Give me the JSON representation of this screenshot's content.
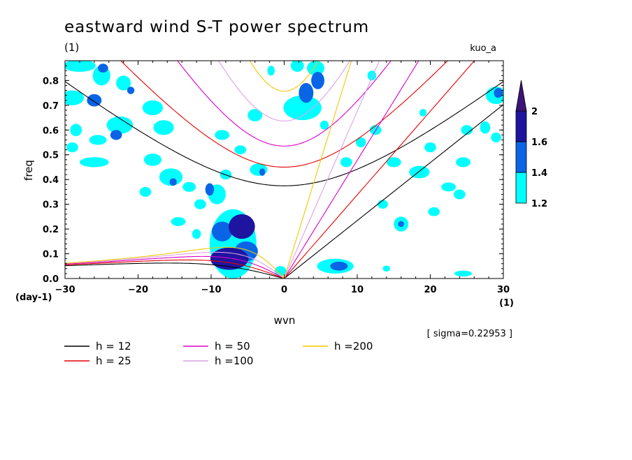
{
  "chart_data": {
    "type": "contour",
    "title": "eastward wind S-T power spectrum",
    "subtitle_left": "(1)",
    "subtitle_right": "kuo_a",
    "xlabel": "wvn",
    "ylabel": "freq",
    "x_unit_label": "(1)",
    "y_unit_label": "(day-1)",
    "xlim": [
      -30,
      30
    ],
    "ylim": [
      0,
      0.88
    ],
    "xticks": [
      -30,
      -20,
      -10,
      0,
      10,
      20,
      30
    ],
    "yticks": [
      0.0,
      0.1,
      0.2,
      0.3,
      0.4,
      0.5,
      0.6,
      0.7,
      0.8
    ],
    "ytick_labels": [
      "0.0",
      "0.1",
      "0.2",
      "0.3",
      "0.4",
      "0.5",
      "0.6",
      "0.7",
      "0.8"
    ],
    "sigma_note": "[ sigma=0.22953 ]",
    "colorbar": {
      "levels": [
        1.2,
        1.4,
        1.6,
        2
      ],
      "level_labels": [
        "1.2",
        "1.4",
        "1.6",
        "2"
      ],
      "colors": [
        "#00ffff",
        "#0a64e6",
        "#1e14a0",
        "#3c1478"
      ]
    },
    "dispersion_series": [
      {
        "name": "h = 12",
        "h": 12,
        "color": "#000000"
      },
      {
        "name": "h = 25",
        "h": 25,
        "color": "#e60000"
      },
      {
        "name": "h = 50",
        "h": 50,
        "color": "#dc00c8"
      },
      {
        "name": "h =100",
        "h": 100,
        "color": "#dca0e6"
      },
      {
        "name": "h =200",
        "h": 200,
        "color": "#f0c800"
      }
    ],
    "contour_patches": [
      {
        "x": -7.5,
        "y": 0.08,
        "rx": 2.6,
        "ry": 0.045,
        "level": 3
      },
      {
        "x": -5.2,
        "y": 0.11,
        "rx": 1.6,
        "ry": 0.04,
        "level": 2
      },
      {
        "x": -5.8,
        "y": 0.21,
        "rx": 1.8,
        "ry": 0.05,
        "level": 3
      },
      {
        "x": -8.5,
        "y": 0.19,
        "rx": 1.4,
        "ry": 0.04,
        "level": 2
      },
      {
        "x": -7.0,
        "y": 0.14,
        "rx": 3.2,
        "ry": 0.14,
        "level": 1
      },
      {
        "x": -9.2,
        "y": 0.34,
        "rx": 1.2,
        "ry": 0.04,
        "level": 1
      },
      {
        "x": -10.2,
        "y": 0.36,
        "rx": 0.6,
        "ry": 0.025,
        "level": 2
      },
      {
        "x": 7.0,
        "y": 0.05,
        "rx": 2.5,
        "ry": 0.03,
        "level": 1
      },
      {
        "x": 7.5,
        "y": 0.05,
        "rx": 1.2,
        "ry": 0.018,
        "level": 2
      },
      {
        "x": 2.5,
        "y": 0.69,
        "rx": 2.6,
        "ry": 0.05,
        "level": 1
      },
      {
        "x": 3.0,
        "y": 0.75,
        "rx": 1.0,
        "ry": 0.04,
        "level": 2
      },
      {
        "x": 4.6,
        "y": 0.8,
        "rx": 0.9,
        "ry": 0.035,
        "level": 2
      },
      {
        "x": 4.3,
        "y": 0.85,
        "rx": 1.2,
        "ry": 0.03,
        "level": 1
      },
      {
        "x": 1.8,
        "y": 0.86,
        "rx": 0.9,
        "ry": 0.025,
        "level": 1
      },
      {
        "x": -28.0,
        "y": 0.86,
        "rx": 2.2,
        "ry": 0.025,
        "level": 1
      },
      {
        "x": -25.0,
        "y": 0.82,
        "rx": 1.2,
        "ry": 0.04,
        "level": 1
      },
      {
        "x": -24.8,
        "y": 0.85,
        "rx": 0.7,
        "ry": 0.018,
        "level": 2
      },
      {
        "x": -29.0,
        "y": 0.73,
        "rx": 1.6,
        "ry": 0.03,
        "level": 1
      },
      {
        "x": -26.0,
        "y": 0.72,
        "rx": 1.0,
        "ry": 0.025,
        "level": 2
      },
      {
        "x": -22.0,
        "y": 0.79,
        "rx": 1.0,
        "ry": 0.03,
        "level": 1
      },
      {
        "x": -21.0,
        "y": 0.76,
        "rx": 0.5,
        "ry": 0.015,
        "level": 2
      },
      {
        "x": -18.0,
        "y": 0.69,
        "rx": 1.4,
        "ry": 0.03,
        "level": 1
      },
      {
        "x": -16.5,
        "y": 0.61,
        "rx": 1.4,
        "ry": 0.03,
        "level": 1
      },
      {
        "x": -22.5,
        "y": 0.62,
        "rx": 1.8,
        "ry": 0.035,
        "level": 1
      },
      {
        "x": -23.0,
        "y": 0.58,
        "rx": 0.8,
        "ry": 0.02,
        "level": 2
      },
      {
        "x": -28.5,
        "y": 0.6,
        "rx": 0.8,
        "ry": 0.025,
        "level": 1
      },
      {
        "x": -25.5,
        "y": 0.56,
        "rx": 1.2,
        "ry": 0.02,
        "level": 1
      },
      {
        "x": -29.0,
        "y": 0.53,
        "rx": 0.8,
        "ry": 0.02,
        "level": 1
      },
      {
        "x": -26.0,
        "y": 0.47,
        "rx": 2.0,
        "ry": 0.02,
        "level": 1
      },
      {
        "x": -18.0,
        "y": 0.48,
        "rx": 1.2,
        "ry": 0.025,
        "level": 1
      },
      {
        "x": -15.5,
        "y": 0.41,
        "rx": 1.6,
        "ry": 0.035,
        "level": 1
      },
      {
        "x": -15.2,
        "y": 0.39,
        "rx": 0.5,
        "ry": 0.015,
        "level": 2
      },
      {
        "x": -13.0,
        "y": 0.37,
        "rx": 0.9,
        "ry": 0.02,
        "level": 1
      },
      {
        "x": -11.5,
        "y": 0.3,
        "rx": 0.8,
        "ry": 0.02,
        "level": 1
      },
      {
        "x": -14.5,
        "y": 0.23,
        "rx": 1.0,
        "ry": 0.018,
        "level": 1
      },
      {
        "x": -3.5,
        "y": 0.44,
        "rx": 1.2,
        "ry": 0.025,
        "level": 1
      },
      {
        "x": -3.0,
        "y": 0.43,
        "rx": 0.4,
        "ry": 0.015,
        "level": 2
      },
      {
        "x": -4.0,
        "y": 0.66,
        "rx": 1.0,
        "ry": 0.025,
        "level": 1
      },
      {
        "x": -8.5,
        "y": 0.58,
        "rx": 1.0,
        "ry": 0.02,
        "level": 1
      },
      {
        "x": -6.0,
        "y": 0.52,
        "rx": 0.8,
        "ry": 0.018,
        "level": 1
      },
      {
        "x": 8.5,
        "y": 0.47,
        "rx": 0.8,
        "ry": 0.02,
        "level": 1
      },
      {
        "x": 10.5,
        "y": 0.55,
        "rx": 0.7,
        "ry": 0.02,
        "level": 1
      },
      {
        "x": 12.5,
        "y": 0.6,
        "rx": 0.8,
        "ry": 0.02,
        "level": 1
      },
      {
        "x": 15.0,
        "y": 0.47,
        "rx": 1.0,
        "ry": 0.02,
        "level": 1
      },
      {
        "x": 18.5,
        "y": 0.43,
        "rx": 1.4,
        "ry": 0.025,
        "level": 1
      },
      {
        "x": 20.0,
        "y": 0.53,
        "rx": 0.8,
        "ry": 0.02,
        "level": 1
      },
      {
        "x": 22.5,
        "y": 0.37,
        "rx": 1.0,
        "ry": 0.018,
        "level": 1
      },
      {
        "x": 24.5,
        "y": 0.47,
        "rx": 1.0,
        "ry": 0.02,
        "level": 1
      },
      {
        "x": 25.0,
        "y": 0.6,
        "rx": 0.8,
        "ry": 0.02,
        "level": 1
      },
      {
        "x": 27.5,
        "y": 0.61,
        "rx": 0.7,
        "ry": 0.025,
        "level": 1
      },
      {
        "x": 29.0,
        "y": 0.74,
        "rx": 1.4,
        "ry": 0.035,
        "level": 1
      },
      {
        "x": 29.3,
        "y": 0.75,
        "rx": 0.6,
        "ry": 0.02,
        "level": 2
      },
      {
        "x": 29.0,
        "y": 0.57,
        "rx": 0.7,
        "ry": 0.02,
        "level": 1
      },
      {
        "x": 16.0,
        "y": 0.22,
        "rx": 1.0,
        "ry": 0.03,
        "level": 1
      },
      {
        "x": 16.0,
        "y": 0.22,
        "rx": 0.4,
        "ry": 0.012,
        "level": 2
      },
      {
        "x": 20.5,
        "y": 0.27,
        "rx": 0.8,
        "ry": 0.018,
        "level": 1
      },
      {
        "x": 24.0,
        "y": 0.34,
        "rx": 0.8,
        "ry": 0.02,
        "level": 1
      },
      {
        "x": 13.5,
        "y": 0.3,
        "rx": 0.7,
        "ry": 0.018,
        "level": 1
      },
      {
        "x": 12.0,
        "y": 0.82,
        "rx": 0.6,
        "ry": 0.02,
        "level": 1
      },
      {
        "x": 19.0,
        "y": 0.67,
        "rx": 0.5,
        "ry": 0.015,
        "level": 1
      },
      {
        "x": 24.5,
        "y": 0.02,
        "rx": 1.2,
        "ry": 0.012,
        "level": 1
      },
      {
        "x": 14.0,
        "y": 0.04,
        "rx": 0.5,
        "ry": 0.012,
        "level": 1
      },
      {
        "x": -0.5,
        "y": 0.03,
        "rx": 0.8,
        "ry": 0.02,
        "level": 1
      },
      {
        "x": -12.0,
        "y": 0.18,
        "rx": 0.6,
        "ry": 0.02,
        "level": 1
      },
      {
        "x": -19.0,
        "y": 0.35,
        "rx": 0.8,
        "ry": 0.02,
        "level": 1
      },
      {
        "x": -8.0,
        "y": 0.42,
        "rx": 0.8,
        "ry": 0.02,
        "level": 1
      },
      {
        "x": -1.8,
        "y": 0.84,
        "rx": 0.5,
        "ry": 0.02,
        "level": 1
      },
      {
        "x": 5.5,
        "y": 0.62,
        "rx": 0.6,
        "ry": 0.018,
        "level": 1
      }
    ]
  }
}
